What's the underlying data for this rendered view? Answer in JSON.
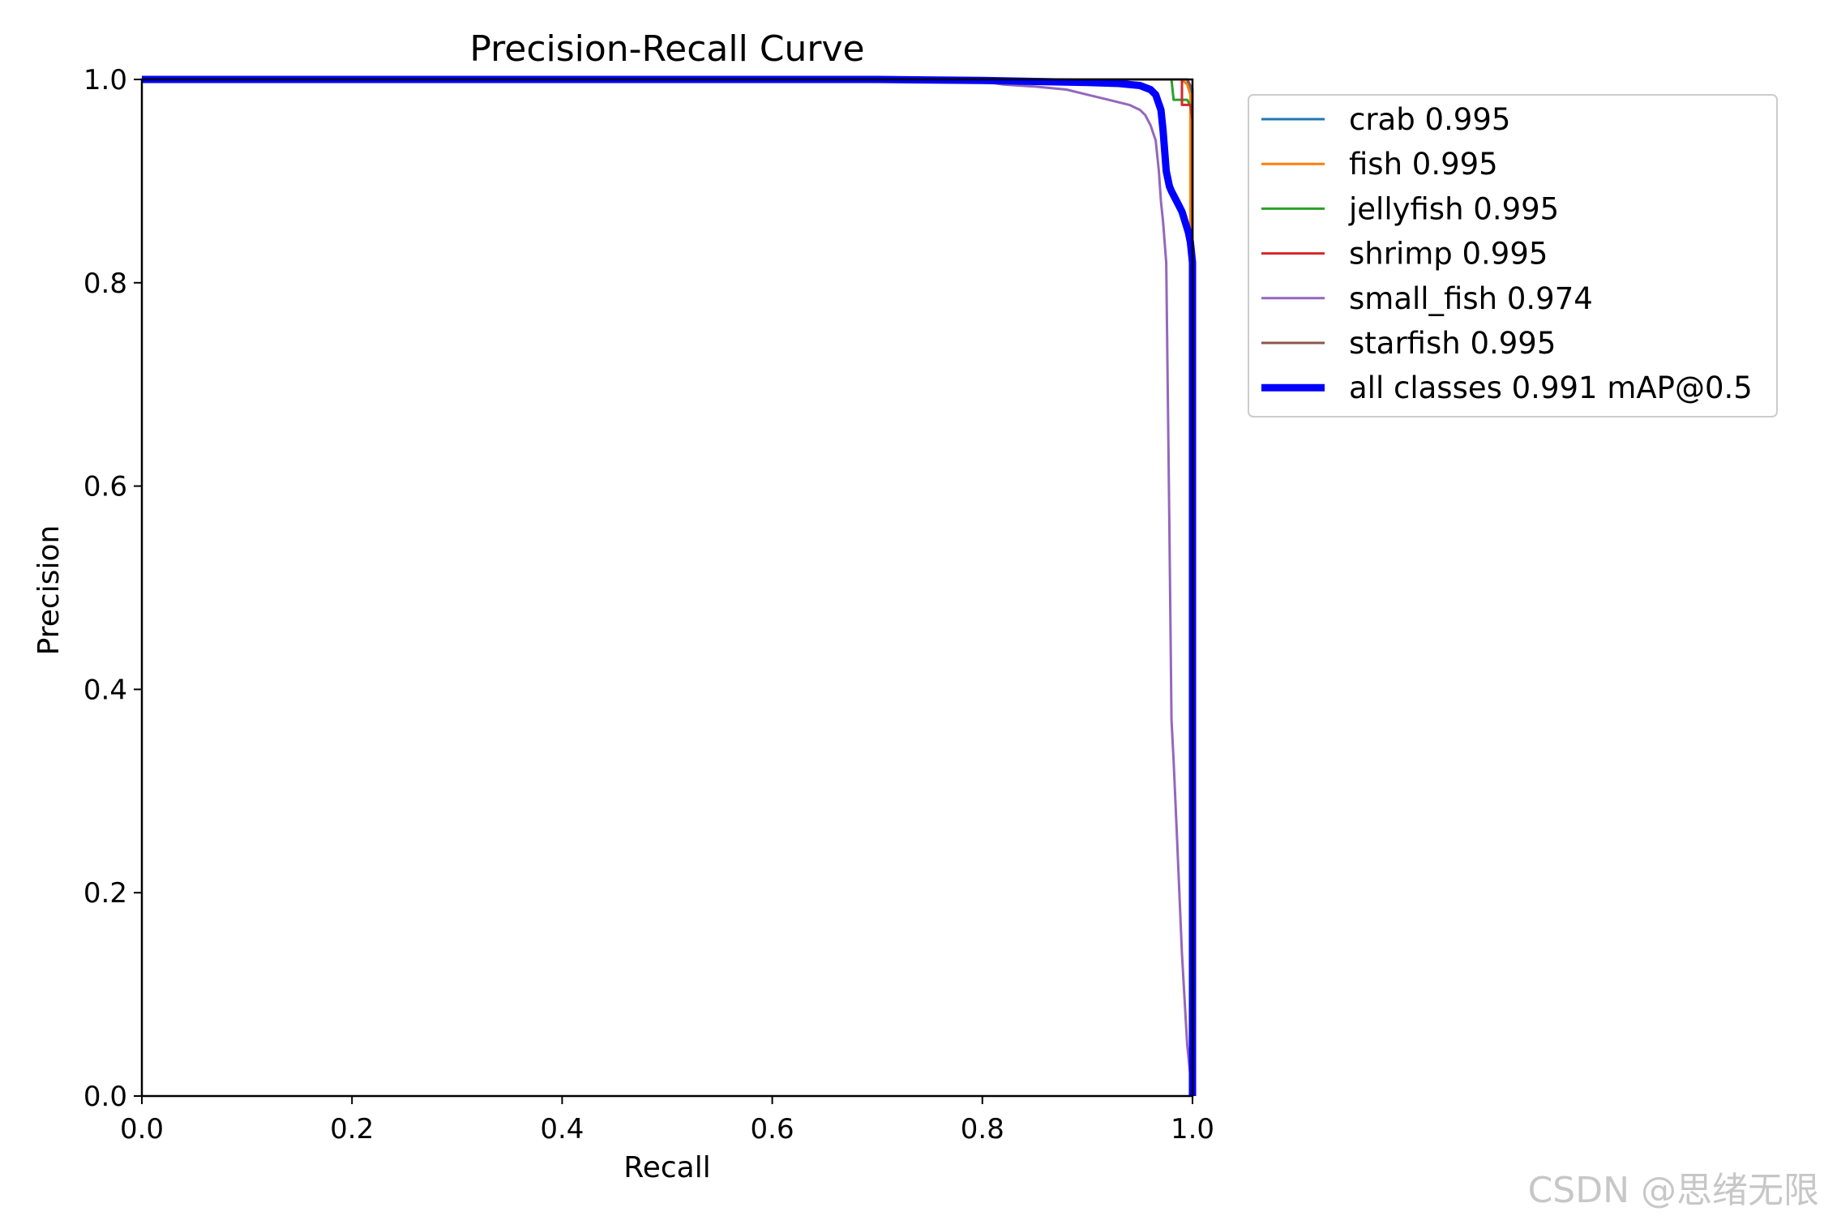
{
  "chart_data": {
    "type": "line",
    "title": "Precision-Recall Curve",
    "xlabel": "Recall",
    "ylabel": "Precision",
    "xlim": [
      0,
      1
    ],
    "ylim": [
      0,
      1
    ],
    "xticks": [
      "0.0",
      "0.2",
      "0.4",
      "0.6",
      "0.8",
      "1.0"
    ],
    "yticks": [
      "0.0",
      "0.2",
      "0.4",
      "0.6",
      "0.8",
      "1.0"
    ],
    "grid": false,
    "legend_position": "outside-top-right",
    "series": [
      {
        "name": "crab 0.995",
        "color": "#1f77b4",
        "width": 3,
        "x": [
          0,
          0.99,
          0.995,
          1.0,
          1.0
        ],
        "y": [
          1.0,
          1.0,
          1.0,
          0.98,
          0.0
        ]
      },
      {
        "name": "fish 0.995",
        "color": "#ff7f0e",
        "width": 3,
        "x": [
          0,
          0.97,
          0.99,
          0.995,
          0.998,
          0.998,
          1.0,
          1.0
        ],
        "y": [
          1.0,
          1.0,
          1.0,
          0.995,
          0.985,
          0.85,
          0.84,
          0.0
        ]
      },
      {
        "name": "jellyfish 0.995",
        "color": "#2ca02c",
        "width": 3,
        "x": [
          0,
          0.98,
          0.982,
          0.99,
          0.995,
          1.0,
          1.0
        ],
        "y": [
          1.0,
          1.0,
          0.98,
          0.98,
          0.98,
          0.97,
          0.0
        ]
      },
      {
        "name": "shrimp 0.995",
        "color": "#d62728",
        "width": 3,
        "x": [
          0,
          0.985,
          0.99,
          0.99,
          0.998,
          1.0,
          1.0
        ],
        "y": [
          1.0,
          1.0,
          1.0,
          0.975,
          0.975,
          0.96,
          0.0
        ]
      },
      {
        "name": "small_fish 0.974",
        "color": "#9467bd",
        "width": 3,
        "x": [
          0,
          0.75,
          0.8,
          0.82,
          0.85,
          0.88,
          0.9,
          0.92,
          0.94,
          0.95,
          0.955,
          0.96,
          0.965,
          0.968,
          0.97,
          0.972,
          0.975,
          0.978,
          0.98,
          0.982,
          0.985,
          0.99,
          0.995,
          1.0
        ],
        "y": [
          1.0,
          1.0,
          0.998,
          0.995,
          0.993,
          0.99,
          0.985,
          0.98,
          0.975,
          0.97,
          0.965,
          0.955,
          0.94,
          0.91,
          0.88,
          0.86,
          0.82,
          0.56,
          0.37,
          0.33,
          0.26,
          0.14,
          0.05,
          0.0
        ]
      },
      {
        "name": "starfish 0.995",
        "color": "#8c564b",
        "width": 3,
        "x": [
          0,
          0.995,
          1.0,
          1.0
        ],
        "y": [
          1.0,
          1.0,
          0.99,
          0.0
        ]
      },
      {
        "name": "all classes 0.991 mAP@0.5",
        "color": "#0000ff",
        "width": 9,
        "x": [
          0,
          0.7,
          0.8,
          0.85,
          0.9,
          0.93,
          0.95,
          0.96,
          0.965,
          0.97,
          0.972,
          0.975,
          0.978,
          0.98,
          0.985,
          0.99,
          0.993,
          0.996,
          0.998,
          1.0,
          1.0
        ],
        "y": [
          1.0,
          1.0,
          0.999,
          0.998,
          0.997,
          0.996,
          0.994,
          0.99,
          0.985,
          0.97,
          0.95,
          0.91,
          0.895,
          0.89,
          0.88,
          0.87,
          0.86,
          0.85,
          0.84,
          0.82,
          0.0
        ]
      }
    ]
  },
  "watermark": "CSDN @思绪无限"
}
